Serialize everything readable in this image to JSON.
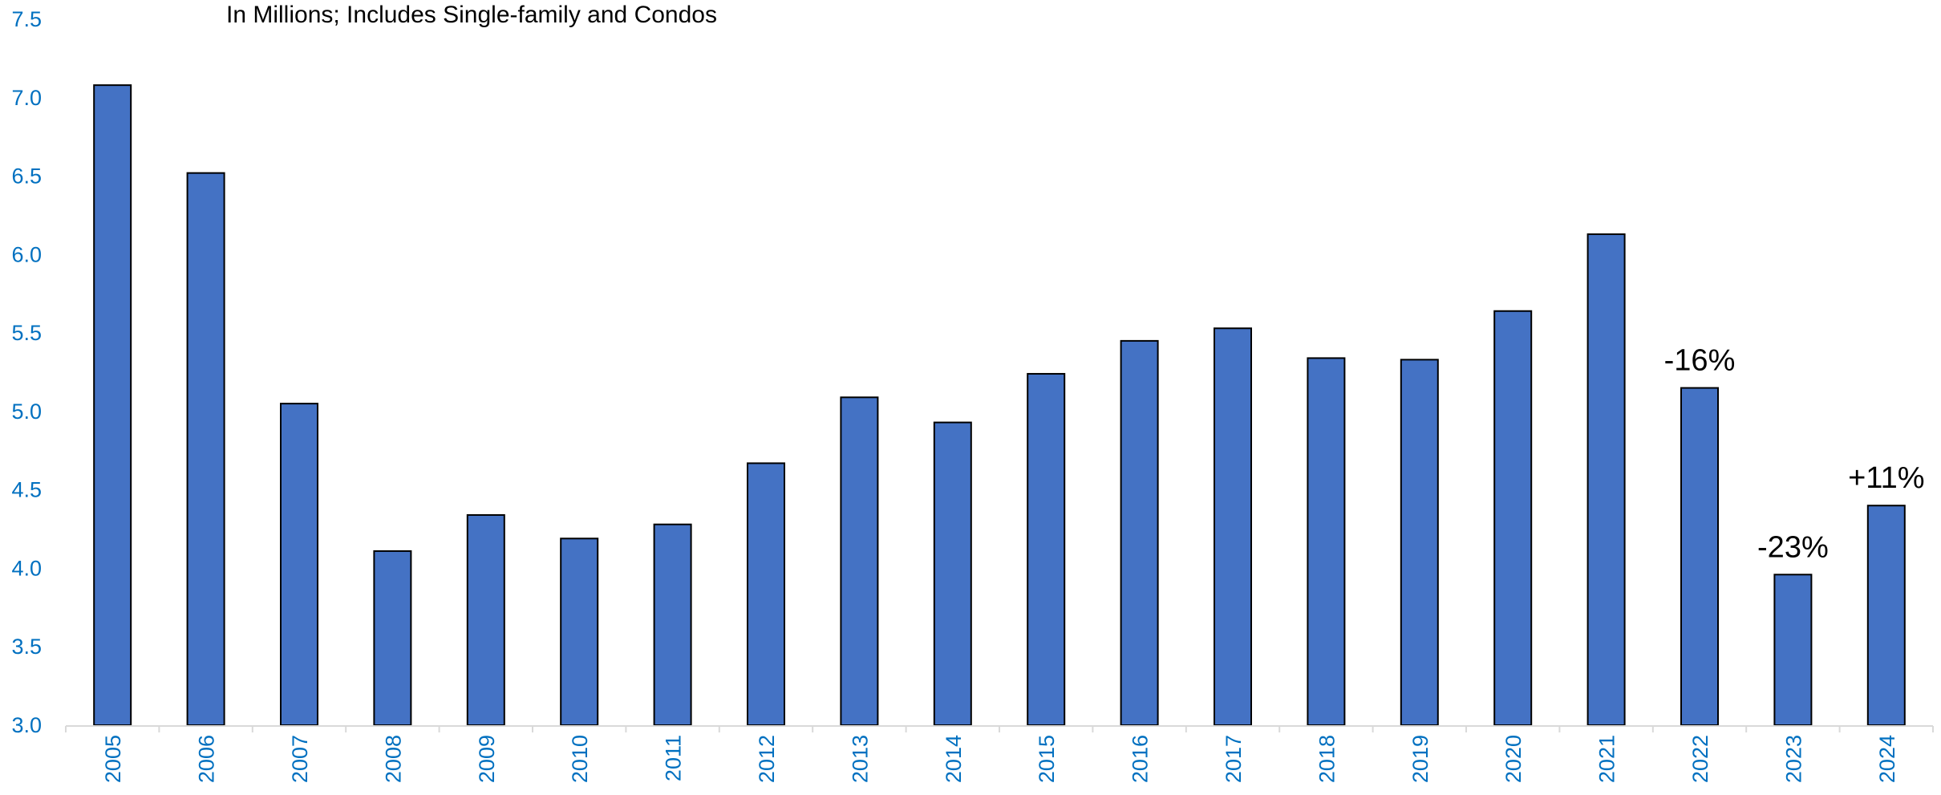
{
  "chart_data": {
    "type": "bar",
    "subtitle": "In Millions; Includes Single-family and Condos",
    "categories": [
      "2005",
      "2006",
      "2007",
      "2008",
      "2009",
      "2010",
      "2011",
      "2012",
      "2013",
      "2014",
      "2015",
      "2016",
      "2017",
      "2018",
      "2019",
      "2020",
      "2021",
      "2022",
      "2023",
      "2024"
    ],
    "values": [
      7.08,
      6.52,
      5.05,
      4.11,
      4.34,
      4.19,
      4.28,
      4.67,
      5.09,
      4.93,
      5.24,
      5.45,
      5.53,
      5.34,
      5.33,
      5.64,
      6.13,
      5.15,
      3.96,
      4.4
    ],
    "annotations": [
      {
        "category": "2022",
        "text": "-16%"
      },
      {
        "category": "2023",
        "text": "-23%"
      },
      {
        "category": "2024",
        "text": "+11%"
      }
    ],
    "ylim": [
      3.0,
      7.5
    ],
    "yticks": [
      "3.0",
      "3.5",
      "4.0",
      "4.5",
      "5.0",
      "5.5",
      "6.0",
      "6.5",
      "7.0",
      "7.5"
    ],
    "xlabel": "",
    "ylabel": "",
    "grid": false,
    "legend": "none",
    "colors": {
      "bar_fill": "#4472C4",
      "bar_stroke": "#000000",
      "tick_label": "#0070C0",
      "axis_line": "#D9D9D9",
      "annotation": "#000000"
    }
  }
}
